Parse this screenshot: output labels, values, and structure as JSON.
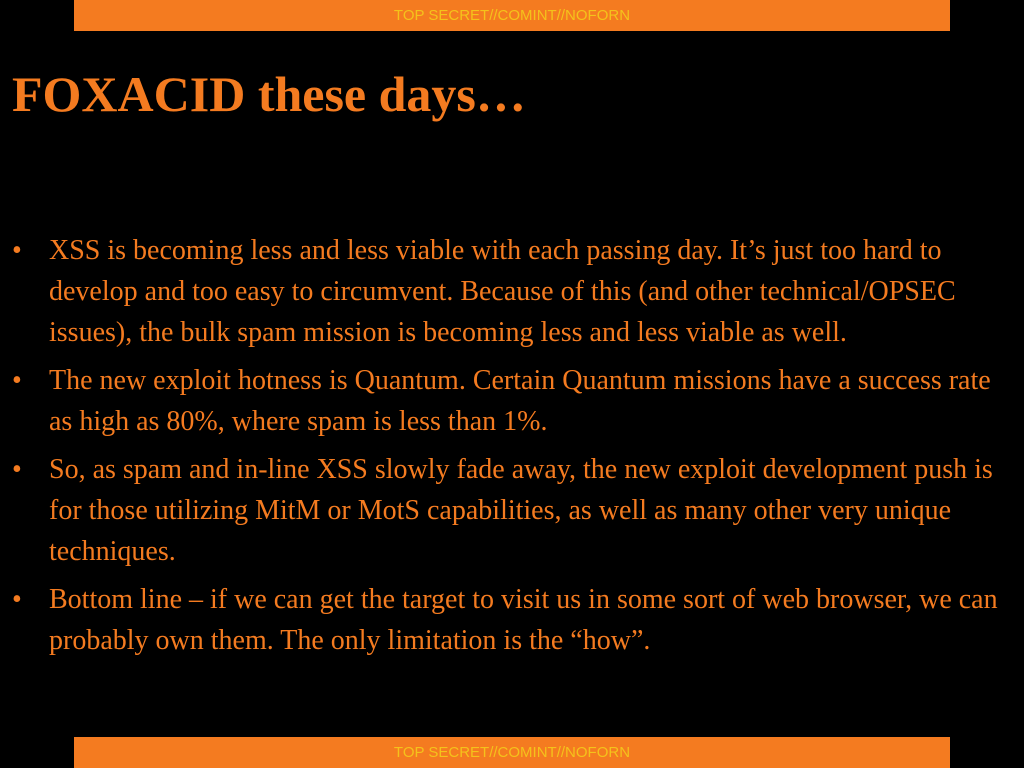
{
  "header_banner": {
    "text": "TOP SECRET//COMINT//NOFORN"
  },
  "title": "FOXACID these days…",
  "bullet_glyph": "•",
  "bullets": [
    "XSS is becoming less and less viable with each passing day. It’s just too hard to develop and too easy to circumvent. Because of this (and other technical/OPSEC issues), the bulk spam mission is becoming less and less viable as well.",
    "The new exploit hotness is Quantum. Certain Quantum missions have a success rate as high as 80%, where spam is less than 1%.",
    "So, as spam and in-line XSS slowly fade away, the new exploit development push is for those utilizing MitM or MotS capabilities, as well as many other very unique techniques.",
    "Bottom line – if we can get the target to visit us in some sort of web browser, we can probably own them. The only limitation is the “how”."
  ],
  "footer_banner": {
    "text": "TOP SECRET//COMINT//NOFORN"
  },
  "colors": {
    "background": "#000000",
    "accent": "#f47b20",
    "banner_text": "#f4c21b"
  }
}
